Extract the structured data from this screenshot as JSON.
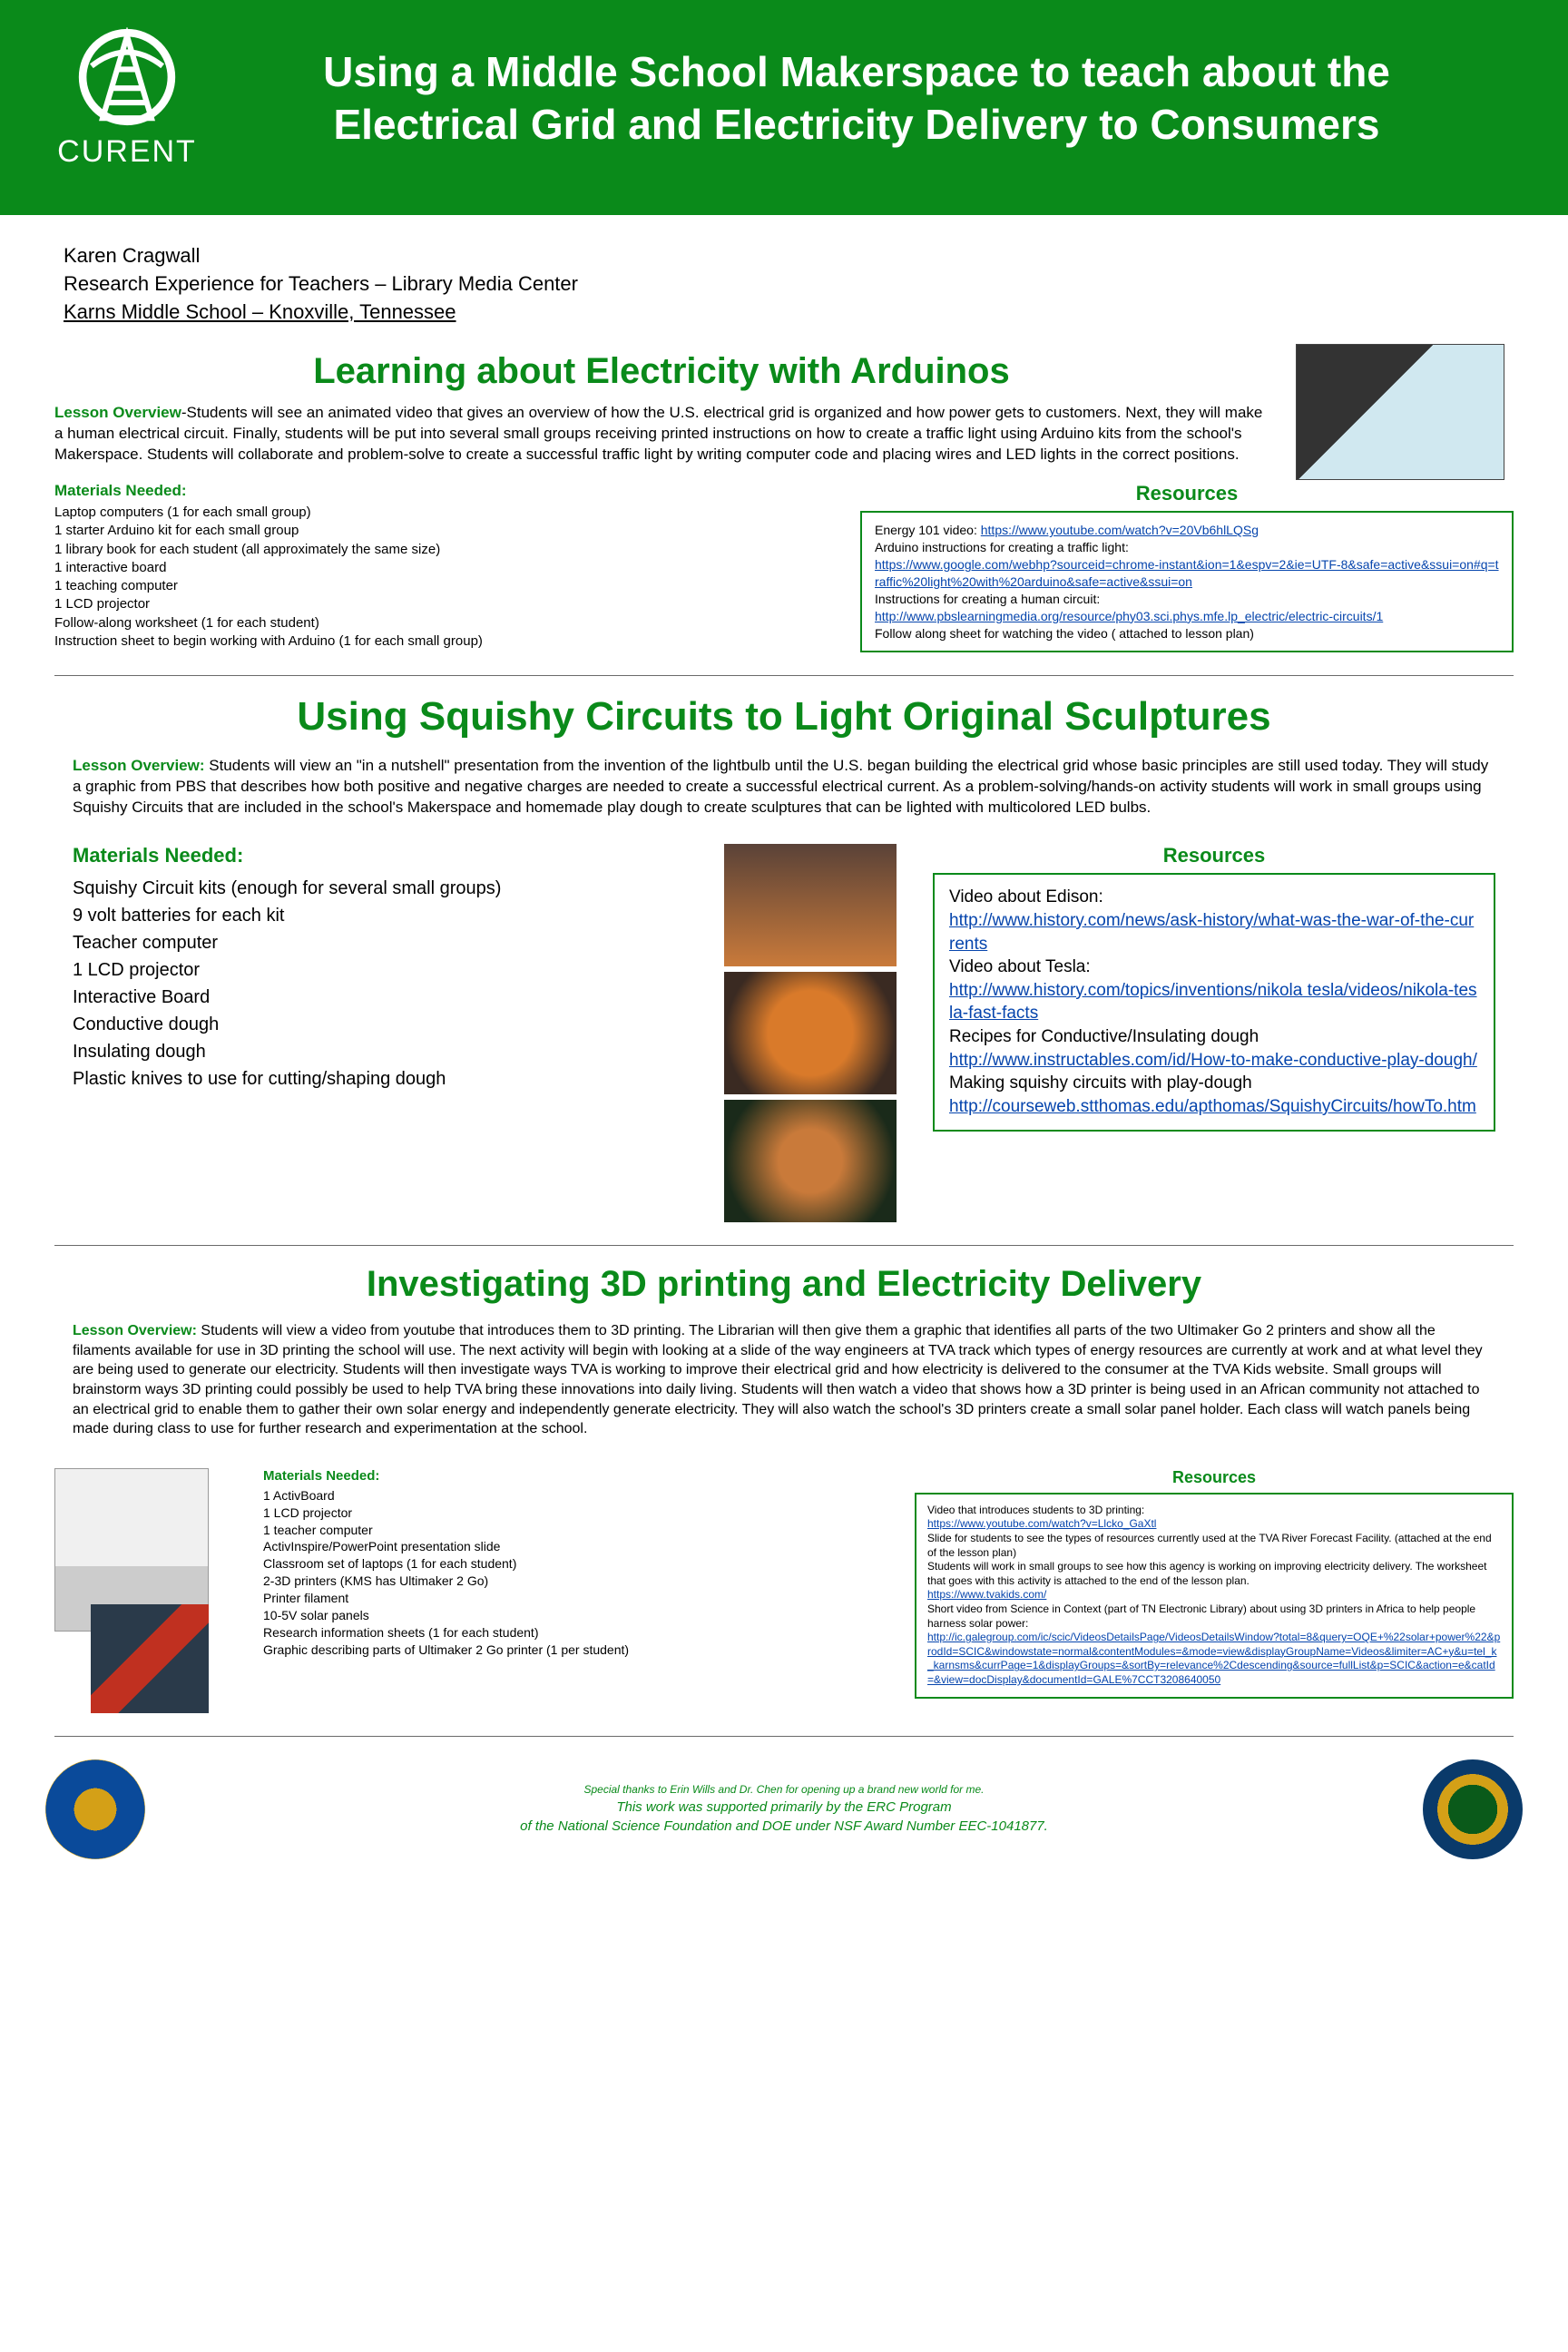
{
  "header": {
    "logo_text": "CURENT",
    "title": "Using a Middle School Makerspace to teach about the Electrical Grid and Electricity Delivery to Consumers"
  },
  "author": {
    "name": "Karen Cragwall",
    "line2": "Research Experience for Teachers – Library Media Center",
    "line3": "Karns Middle School – Knoxville, Tennessee"
  },
  "section1": {
    "title": "Learning about Electricity with Arduinos",
    "overview_label": "Lesson Overview",
    "overview": "-Students will see an animated video that gives an overview of how the U.S. electrical grid is organized and how power gets to customers. Next, they will make a human electrical circuit.  Finally, students will be put into several small groups receiving printed instructions on how to create a traffic light using Arduino kits from the school's Makerspace. Students will collaborate and  problem-solve to create a successful traffic light by writing computer code and placing wires and LED lights in the correct positions.",
    "materials_title": "Materials Needed:",
    "materials": "Laptop computers (1 for each small group)\n1 starter Arduino kit for each small group\n1 library book for each student (all approximately the same size)\n1 interactive board\n1 teaching computer\n1 LCD projector\nFollow-along worksheet (1 for each student)\nInstruction sheet to begin working with Arduino (1 for each small group)",
    "resources_title": "Resources",
    "res_1_pre": "Energy 101 video: ",
    "res_1_link": "https://www.youtube.com/watch?v=20Vb6hlLQSg",
    "res_2_pre": "Arduino instructions for creating a traffic light:",
    "res_2_link": "https://www.google.com/webhp?sourceid=chrome-instant&ion=1&espv=2&ie=UTF-8&safe=active&ssui=on#q=traffic%20light%20with%20arduino&safe=active&ssui=on",
    "res_3_pre": "Instructions for creating a human circuit:",
    "res_3_link": "http://www.pbslearningmedia.org/resource/phy03.sci.phys.mfe.lp_electric/electric-circuits/1",
    "res_4_pre": "Follow along sheet for watching the video ( attached to lesson plan)"
  },
  "section2": {
    "title": "Using Squishy Circuits to Light Original Sculptures",
    "overview_label": "Lesson Overview:",
    "overview": "  Students will view an \"in a nutshell\" presentation from the invention of the lightbulb until the U.S. began building the electrical grid whose basic principles are still used today.  They will study a graphic from PBS that describes how both positive and negative charges are needed to create a successful electrical current.  As a problem-solving/hands-on activity students will work in small groups using Squishy Circuits that are included in the school's Makerspace and homemade play dough to create sculptures that can be lighted with multicolored LED bulbs.",
    "materials_title": "Materials Needed:",
    "materials": "Squishy Circuit kits (enough for several small groups)\n9 volt batteries for each kit\nTeacher computer\n1 LCD projector\nInteractive Board\nConductive dough\nInsulating dough\nPlastic knives to use for cutting/shaping dough",
    "resources_title": "Resources",
    "res_1_pre": "Video about Edison:",
    "res_1_link": "http://www.history.com/news/ask-history/what-was-the-war-of-the-currents",
    "res_2_pre": "Video about Tesla:",
    "res_2_link": "http://www.history.com/topics/inventions/nikola tesla/videos/nikola-tesla-fast-facts",
    "res_3_pre": "Recipes for Conductive/Insulating dough",
    "res_3_link": "http://www.instructables.com/id/How-to-make-conductive-play-dough/",
    "res_4_pre": "Making squishy circuits with play-dough",
    "res_4_link": "http://courseweb.stthomas.edu/apthomas/SquishyCircuits/howTo.htm"
  },
  "section3": {
    "title": "Investigating 3D printing and Electricity Delivery",
    "overview_label": "Lesson Overview:",
    "overview": "  Students will view a video from youtube that introduces them to 3D printing.  The Librarian will then give them a graphic that identifies all parts of the two Ultimaker Go 2 printers and show all the filaments available for use in 3D printing the school will use.  The next activity will begin with looking at a slide of the way engineers at TVA track which types of energy resources are currently at work and at what level they are being used to generate our electricity.  Students will then investigate ways TVA is working to improve their electrical grid and how electricity is delivered to the consumer at the TVA Kids website. Small groups will brainstorm ways 3D printing could possibly be used to help TVA bring these innovations into daily living. Students will then watch a video that shows how a 3D printer is being used in an African community not attached to an electrical grid to enable them to gather their own solar energy and independently generate electricity.  They will also watch the school's 3D printers create a small solar panel holder.  Each class will watch panels being made during class to use for further research and experimentation at the school.",
    "materials_title": "Materials Needed:",
    "materials": "1 ActivBoard\n1 LCD projector\n1 teacher computer\nActivInspire/PowerPoint presentation slide\nClassroom set of laptops (1 for each student)\n2-3D printers (KMS has Ultimaker 2 Go)\nPrinter filament\n10-5V solar panels\nResearch information sheets (1 for each student)\nGraphic describing parts of Ultimaker 2 Go printer (1 per student)",
    "resources_title": "Resources",
    "res_1_pre": "Video that introduces students to 3D printing:",
    "res_1_link": "https://www.youtube.com/watch?v=Llcko_GaXtl",
    "res_2_pre": "Slide for students to see the types of resources currently used at the TVA River Forecast Facility. (attached at the end of the lesson plan)",
    "res_3_pre": "Students will work in small groups to see how this agency is working on improving electricity delivery.  The worksheet that goes with this activity is attached to the end of the lesson plan.",
    "res_3_link": "https://www.tvakids.com/",
    "res_4_pre": "Short video from Science in Context (part of TN Electronic Library) about using 3D printers in Africa to help people harness solar power:",
    "res_4_link": "http://ic.galegroup.com/ic/scic/VideosDetailsPage/VideosDetailsWindow?total=8&query=OQE+%22solar+power%22&prodId=SCIC&windowstate=normal&contentModules=&mode=view&displayGroupName=Videos&limiter=AC+y&u=tel_k_karnsms&currPage=1&displayGroups=&sortBy=relevance%2Cdescending&source=fullList&p=SCIC&action=e&catId=&view=docDisplay&documentId=GALE%7CCT3208640050"
  },
  "footer": {
    "thanks": "Special thanks to Erin Wills and Dr. Chen for opening up a brand new world for me.",
    "support1": "This work was supported primarily by the ERC Program",
    "support2": "of the National Science Foundation and DOE under NSF Award Number EEC-1041877."
  }
}
